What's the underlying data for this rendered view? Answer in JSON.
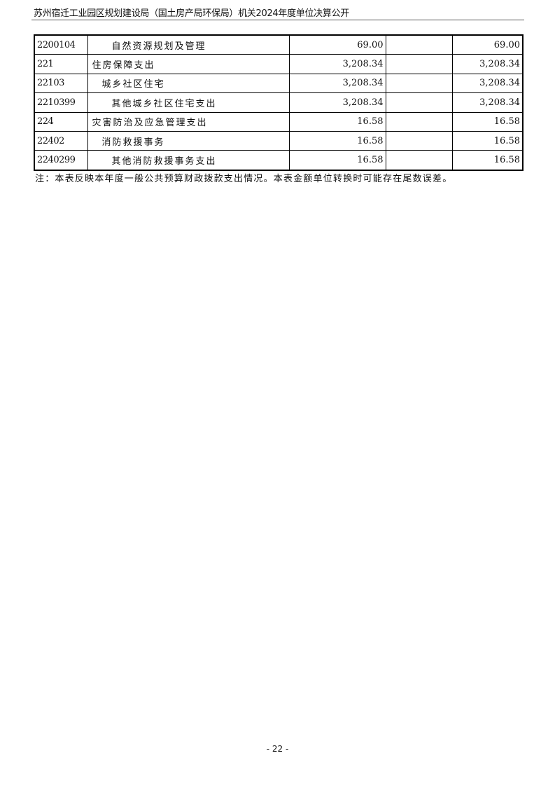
{
  "header": {
    "title": "苏州宿迁工业园区规划建设局（国土房产局环保局）机关2024年度单位决算公开"
  },
  "table": {
    "rows": [
      {
        "code": "2200104",
        "name": "自然资源规划及管理",
        "level": 3,
        "col1": "69.00",
        "col2": "",
        "col3": "69.00"
      },
      {
        "code": "221",
        "name": "住房保障支出",
        "level": 1,
        "col1": "3,208.34",
        "col2": "",
        "col3": "3,208.34"
      },
      {
        "code": "22103",
        "name": "城乡社区住宅",
        "level": 2,
        "col1": "3,208.34",
        "col2": "",
        "col3": "3,208.34"
      },
      {
        "code": "2210399",
        "name": "其他城乡社区住宅支出",
        "level": 3,
        "col1": "3,208.34",
        "col2": "",
        "col3": "3,208.34"
      },
      {
        "code": "224",
        "name": "灾害防治及应急管理支出",
        "level": 1,
        "col1": "16.58",
        "col2": "",
        "col3": "16.58"
      },
      {
        "code": "22402",
        "name": "消防救援事务",
        "level": 2,
        "col1": "16.58",
        "col2": "",
        "col3": "16.58"
      },
      {
        "code": "2240299",
        "name": "其他消防救援事务支出",
        "level": 3,
        "col1": "16.58",
        "col2": "",
        "col3": "16.58"
      }
    ]
  },
  "note": "注：本表反映本年度一般公共预算财政拨款支出情况。本表金额单位转换时可能存在尾数误差。",
  "page_number": "- 22 -"
}
